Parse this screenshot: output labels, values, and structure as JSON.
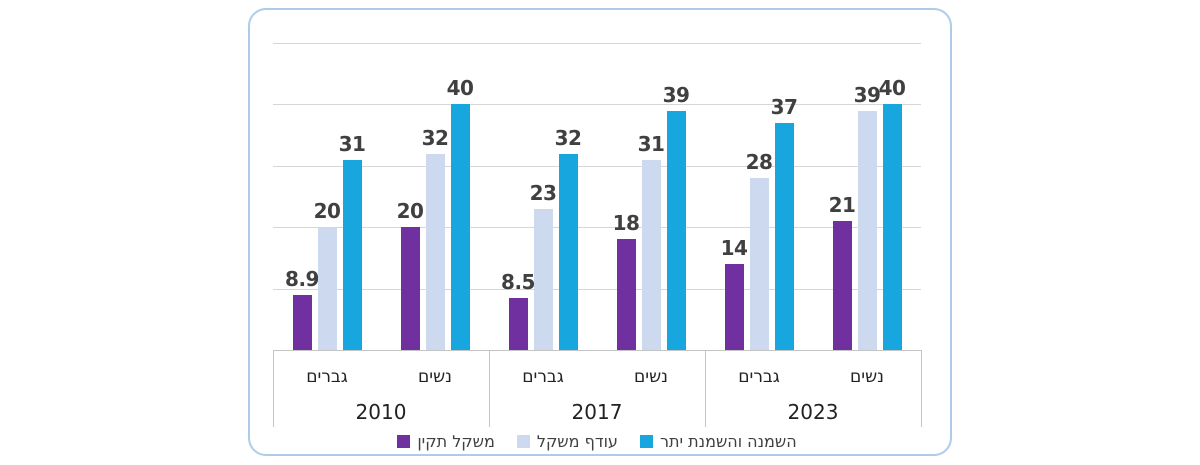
{
  "card": {
    "background": "#ffffff",
    "border_color": "#aecbe9"
  },
  "chart_data": {
    "type": "bar",
    "title": "",
    "rtl": true,
    "ylim": [
      0,
      50
    ],
    "gridline_step": 10,
    "grid": true,
    "y_axis_labels_visible": false,
    "legend_position": "bottom",
    "categories": [
      "גברים",
      "נשים",
      "גברים",
      "נשים",
      "גברים",
      "נשים"
    ],
    "year_groups": [
      {
        "label": "2010",
        "span": 2
      },
      {
        "label": "2017",
        "span": 2
      },
      {
        "label": "2023",
        "span": 2
      }
    ],
    "series": [
      {
        "name": "משקל תקין",
        "color": "#7030a0",
        "values": [
          8.9,
          20,
          8.5,
          18,
          14,
          21
        ]
      },
      {
        "name": "עודף משקל",
        "color": "#cdd9ee",
        "values": [
          20,
          32,
          23,
          31,
          28,
          39
        ]
      },
      {
        "name": "השמנה והשמנת יתר",
        "color": "#18a6de",
        "values": [
          31,
          40,
          32,
          39,
          37,
          40
        ]
      }
    ],
    "colors": {
      "gridline": "#d6d6d6",
      "axis_line": "#c4c4c4",
      "data_label": "#404040",
      "category_label": "#222222",
      "legend_label": "#404040"
    }
  }
}
